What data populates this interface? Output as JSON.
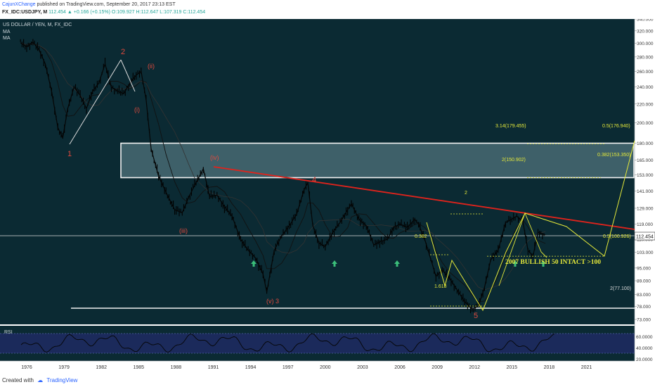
{
  "header": {
    "author": "CajunXChange",
    "published": "published on TradingView.com, September 20, 2017 23:13 EST",
    "symbol_line": "FX_IDC:USDJPY, M",
    "last": "112.454",
    "change": "▲ +0.166 (+0.15%)",
    "ohlc": "O:109.927 H:112.647 L:107.319 C:112.454"
  },
  "legend": {
    "title": "US DOLLAR / YEN, M, FX_IDC",
    "ma1": "MA",
    "ma2": "MA"
  },
  "footer": {
    "created_with": "Created with",
    "brand": "TradingView"
  },
  "colors": {
    "background": "#0b2a33",
    "rsi_background": "#1f2a63",
    "resistance": "#e0231c",
    "projection": "#e4e83a",
    "wave_labels": "#e04a3e",
    "arrows": "#3bbf7a",
    "price_line": "#dcdcdc"
  },
  "chart_data": {
    "type": "line",
    "title": "US DOLLAR / YEN, M, FX_IDC",
    "instrument": "USDJPY",
    "timeframe": "monthly",
    "last_price": 112.454,
    "price_axis": {
      "scale": "log",
      "ticks": [
        "340.000",
        "320.000",
        "300.000",
        "280.000",
        "260.000",
        "240.000",
        "220.000",
        "200.000",
        "180.000",
        "165.000",
        "153.000",
        "141.000",
        "129.000",
        "119.000",
        "110.000",
        "103.000",
        "95.000",
        "89.000",
        "83.000",
        "78.000",
        "73.000"
      ]
    },
    "time_axis": {
      "ticks": [
        "1976",
        "1979",
        "1982",
        "1985",
        "1988",
        "1991",
        "1994",
        "1997",
        "2000",
        "2003",
        "2006",
        "2009",
        "2012",
        "2015",
        "2018",
        "2021"
      ]
    },
    "series": [
      {
        "name": "",
        "x": [
          1975.5,
          1976.0,
          1976.5,
          1977.0,
          1977.5,
          1978.0,
          1978.5,
          1978.9,
          1979.3,
          1979.8,
          1980.3,
          1980.8,
          1981.3,
          1981.8,
          1982.3,
          1982.8,
          1983.3,
          1983.8,
          1984.3,
          1984.8,
          1985.2,
          1985.6,
          1986.0,
          1986.6,
          1987.2,
          1987.9,
          1988.5,
          1989.0,
          1989.5,
          1990.2,
          1990.7,
          1991.3,
          1991.9,
          1992.5,
          1993.2,
          1993.8,
          1994.4,
          1995.0,
          1995.3,
          1995.9,
          1996.5,
          1997.1,
          1997.7,
          1998.3,
          1998.6,
          1999.0,
          1999.5,
          2000.0,
          2000.6,
          2001.2,
          2001.8,
          2002.1,
          2002.7,
          2003.3,
          2003.9,
          2004.5,
          2005.0,
          2005.5,
          2006.0,
          2006.6,
          2007.2,
          2007.5,
          2008.0,
          2008.6,
          2008.9,
          2009.4,
          2010.0,
          2010.6,
          2011.2,
          2011.8,
          2012.3,
          2012.8,
          2013.3,
          2013.9,
          2014.5,
          2015.0,
          2015.4,
          2015.9,
          2016.3,
          2016.7,
          2017.1,
          2017.7
        ],
        "values": [
          301,
          295,
          302,
          290,
          270,
          235,
          195,
          185,
          215,
          240,
          230,
          215,
          235,
          245,
          270,
          240,
          235,
          232,
          245,
          255,
          260,
          225,
          175,
          152,
          140,
          128,
          126,
          136,
          145,
          158,
          137,
          138,
          130,
          124,
          110,
          104,
          100,
          92,
          84,
          104,
          112,
          118,
          125,
          142,
          147,
          118,
          108,
          106,
          114,
          120,
          128,
          132,
          122,
          118,
          107,
          109,
          110,
          117,
          119,
          117,
          122,
          119,
          110,
          97,
          91,
          94,
          90,
          85,
          80,
          77,
          78,
          86,
          99,
          104,
          120,
          122,
          124,
          120,
          104,
          101,
          114,
          112.454
        ]
      }
    ],
    "zone": {
      "top": 180,
      "bottom": 150.9
    },
    "levels": [
      {
        "label": "3.14(179.455)",
        "value": 179.455
      },
      {
        "label": "0.5(176.940)",
        "value": 176.94
      },
      {
        "label": "2(150.902)",
        "value": 150.902
      },
      {
        "label": "0.382(153.350)",
        "value": 153.35
      },
      {
        "label": "0.5(100.926)",
        "value": 100.926
      },
      {
        "label": "2(77.100)",
        "value": 77.1
      }
    ],
    "wave_labels": [
      "1",
      "2",
      "(ii)",
      "(i)",
      "(iv)",
      "(iii)",
      "(v) 3",
      "4",
      "5"
    ],
    "fib_labels": [
      "0.382",
      "1.618",
      "2"
    ],
    "annotation": "2007 BULLISH 50  INTACT >100",
    "rsi": {
      "name": "RSI",
      "ticks": [
        "60.0000",
        "40.0000",
        "20.0000"
      ]
    }
  }
}
